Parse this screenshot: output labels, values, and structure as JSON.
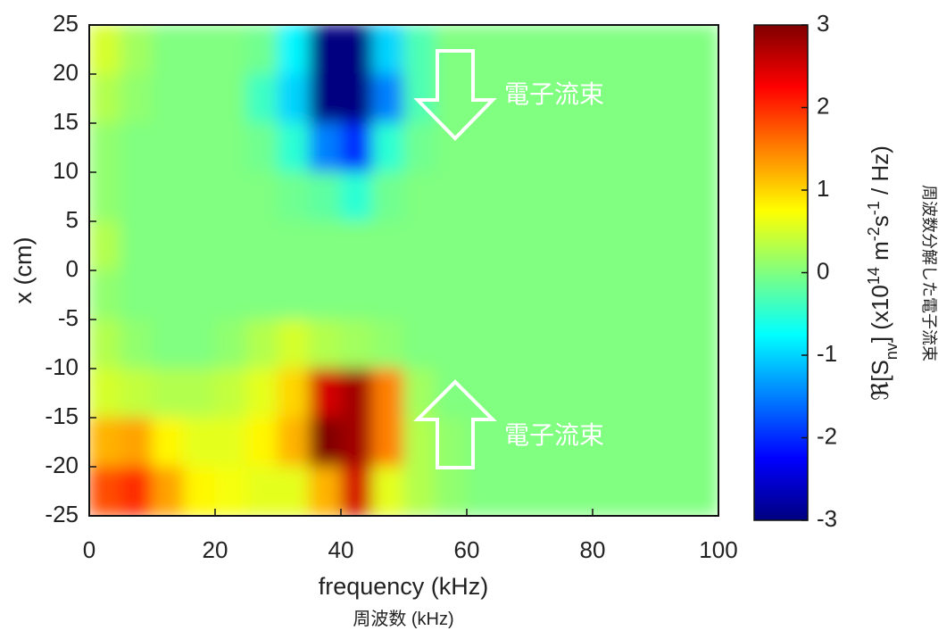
{
  "chart_data": {
    "type": "heatmap",
    "xlabel": "frequency (kHz)",
    "ylabel": "x (cm)",
    "subtitle": "周波数 (kHz)",
    "colorbar_label_parts": [
      "ℜ[S",
      "nv",
      "] (x10",
      "14",
      " m",
      "-2",
      "s",
      "-1",
      " / Hz)"
    ],
    "side_label": "周波数分解した電子流束",
    "annotations": [
      "電子流束",
      "電子流束"
    ],
    "xlim": [
      0,
      100
    ],
    "xticks": [
      0,
      20,
      40,
      60,
      80,
      100
    ],
    "ylim": [
      -25,
      25
    ],
    "yticks": [
      -25,
      -20,
      -15,
      -10,
      -5,
      0,
      5,
      10,
      15,
      20,
      25
    ],
    "x_edges": [
      0,
      5,
      10,
      15,
      20,
      25,
      30,
      35,
      40,
      45,
      50,
      55,
      60,
      65,
      70,
      75,
      80,
      85,
      90,
      95,
      100
    ],
    "y_edges": [
      25,
      20,
      15,
      10,
      5,
      0,
      -5,
      -10,
      -15,
      -20,
      -25
    ],
    "colormap": "jet",
    "clim": [
      -3,
      3
    ],
    "cticks": [
      -3,
      -2,
      -1,
      0,
      1,
      2,
      3
    ],
    "values": [
      [
        0.5,
        0.2,
        0,
        0,
        0,
        -0.1,
        -0.8,
        -3,
        -3,
        -1,
        -0.3,
        0,
        0,
        0,
        0,
        0,
        0,
        0,
        0,
        0
      ],
      [
        0.3,
        0.1,
        0,
        0,
        0,
        -0.4,
        -1,
        -3,
        -3,
        -1.5,
        -0.3,
        0,
        0,
        0,
        0,
        0,
        0,
        0,
        0,
        0
      ],
      [
        0.1,
        0,
        0,
        0,
        0,
        -0.1,
        -0.5,
        -1.5,
        -2,
        -0.5,
        -0.1,
        0,
        0,
        0,
        0,
        0,
        0,
        0,
        0,
        0
      ],
      [
        0.1,
        0,
        0,
        0,
        0,
        0,
        -0.1,
        -0.2,
        -0.5,
        -0.1,
        0,
        0,
        0,
        0,
        0,
        0,
        0,
        0,
        0,
        0
      ],
      [
        0.3,
        0,
        0,
        0,
        0,
        0,
        0,
        0,
        0,
        0,
        0,
        0,
        0,
        0,
        0,
        0,
        0,
        0,
        0,
        0
      ],
      [
        0.1,
        0,
        0,
        0,
        0,
        0,
        0,
        0,
        0,
        0,
        0,
        0,
        0,
        0,
        0,
        0,
        0,
        0,
        0,
        0
      ],
      [
        0.3,
        0.1,
        0,
        0,
        0.1,
        0.3,
        0.5,
        0.3,
        0.2,
        0.1,
        0,
        0,
        0,
        0,
        0,
        0,
        0,
        0,
        0,
        0
      ],
      [
        0.5,
        0.4,
        0.3,
        0.3,
        0.4,
        0.6,
        1,
        2.5,
        2.8,
        1.5,
        0.2,
        0,
        0,
        0,
        0,
        0,
        0,
        0,
        0,
        0
      ],
      [
        1.2,
        1.3,
        0.8,
        0.6,
        0.6,
        0.8,
        1.2,
        3,
        2.8,
        1.5,
        0.3,
        0.1,
        0,
        0,
        0,
        0,
        0,
        0,
        0,
        0
      ],
      [
        1.8,
        2,
        1.3,
        0.8,
        0.7,
        0.6,
        0.6,
        1.2,
        2.5,
        0.6,
        0.3,
        0.1,
        0,
        0,
        0,
        0,
        0,
        0,
        0,
        0
      ]
    ]
  }
}
